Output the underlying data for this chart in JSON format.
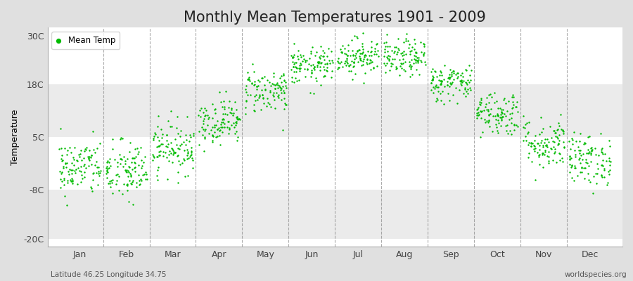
{
  "title": "Monthly Mean Temperatures 1901 - 2009",
  "ylabel": "Temperature",
  "ytick_labels": [
    "30C",
    "18C",
    "5C",
    "-8C",
    "-20C"
  ],
  "ytick_values": [
    30,
    18,
    5,
    -8,
    -20
  ],
  "ylim": [
    -22,
    32
  ],
  "months": [
    "Jan",
    "Feb",
    "Mar",
    "Apr",
    "May",
    "Jun",
    "Jul",
    "Aug",
    "Sep",
    "Oct",
    "Nov",
    "Dec"
  ],
  "dot_color": "#00bb00",
  "dot_size": 3,
  "figure_bg_color": "#e0e0e0",
  "plot_bg_white": "#ffffff",
  "plot_bg_gray": "#ebebeb",
  "grid_color": "#888888",
  "title_fontsize": 15,
  "axis_fontsize": 9,
  "legend_label": "Mean Temp",
  "footer_left": "Latitude 46.25 Longitude 34.75",
  "footer_right": "worldspecies.org",
  "monthly_means": [
    -2.5,
    -3.5,
    2.5,
    9.0,
    16.5,
    22.5,
    25.0,
    24.5,
    18.5,
    11.0,
    3.5,
    -0.5
  ],
  "monthly_stds": [
    3.5,
    3.8,
    3.2,
    2.8,
    2.8,
    2.3,
    2.3,
    2.3,
    2.3,
    2.8,
    3.2,
    3.2
  ],
  "n_years": 109,
  "band_pairs": [
    [
      30,
      18,
      "#ffffff"
    ],
    [
      18,
      5,
      "#ebebeb"
    ],
    [
      5,
      -8,
      "#ffffff"
    ],
    [
      -8,
      -20,
      "#ebebeb"
    ]
  ]
}
